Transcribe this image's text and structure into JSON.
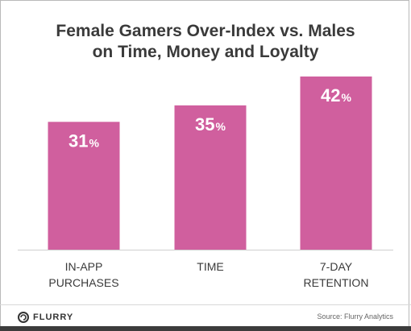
{
  "header": {
    "title_line1": "Female Gamers Over-Index vs. Males",
    "title_line2": "on Time, Money and Loyalty"
  },
  "chart_data": {
    "type": "bar",
    "title": "Female Gamers Over-Index vs. Males on Time, Money and Loyalty",
    "categories": [
      "IN-APP PURCHASES",
      "TIME",
      "7-DAY RETENTION"
    ],
    "category_lines": [
      [
        "IN-APP",
        "PURCHASES"
      ],
      [
        "TIME"
      ],
      [
        "7-DAY",
        "RETENTION"
      ]
    ],
    "values": [
      31,
      35,
      42
    ],
    "value_labels": [
      "31",
      "35",
      "42"
    ],
    "unit": "%",
    "xlabel": "",
    "ylabel": "",
    "grid": false,
    "bar_color": "#d05f9e",
    "label_color": "#ffffff"
  },
  "footer": {
    "logo_text": "FLURRY",
    "logo_icon": "flurry-logo-icon",
    "source": "Source: Flurry Analytics"
  }
}
